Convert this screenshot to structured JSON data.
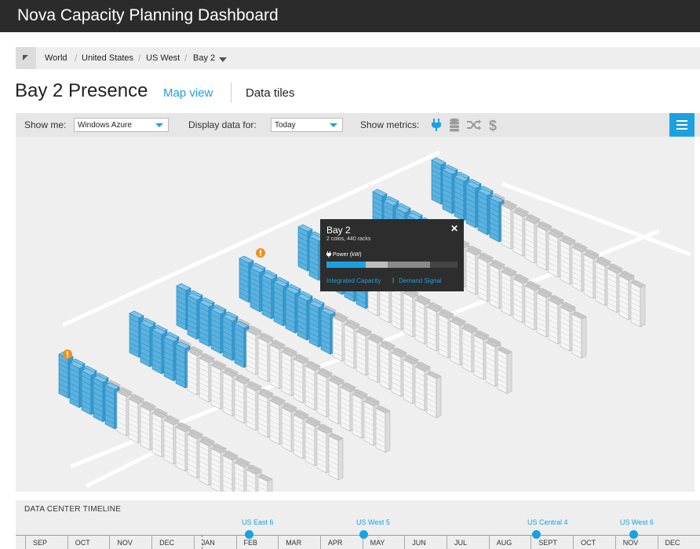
{
  "app": {
    "title": "Nova Capacity Planning Dashboard"
  },
  "breadcrumb": {
    "items": [
      "World",
      "United States",
      "US West",
      "Bay 2"
    ],
    "separator": "/"
  },
  "page": {
    "title": "Bay 2 Presence"
  },
  "tabs": {
    "map": "Map view",
    "data": "Data tiles"
  },
  "toolbar": {
    "show_me_label": "Show me:",
    "show_me_value": "Windows Azure",
    "display_label": "Display data for:",
    "display_value": "Today",
    "metrics_label": "Show metrics:",
    "metrics": [
      "power-plug-icon",
      "storage-icon",
      "network-shuffle-icon",
      "dollar-icon"
    ]
  },
  "tooltip": {
    "title": "Bay 2",
    "subtitle": "2 colos, 440 racks",
    "close": "✕",
    "metric": "Power (kW)",
    "power_segments": [
      0.3,
      0.17,
      0.32,
      0.21
    ],
    "link1": "Integrated Capacity",
    "pipe": "|",
    "link2": "Demand Signal"
  },
  "timeline": {
    "title": "DATA CENTER TIMELINE",
    "months": [
      "SEP",
      "OCT",
      "NOV",
      "DEC",
      "JAN",
      "FEB",
      "MAR",
      "APR",
      "MAY",
      "JUN",
      "JUL",
      "AUG",
      "SEPT",
      "OCT",
      "NOV",
      "DEC"
    ],
    "events": [
      "US East 6",
      "US West 5",
      "US Central 4",
      "US West 6"
    ]
  },
  "colors": {
    "accent": "#1ba1e2",
    "titlebar": "#2b2b2b",
    "rack_active": "#5bb2de",
    "rack_idle": "#e6e6e6"
  }
}
